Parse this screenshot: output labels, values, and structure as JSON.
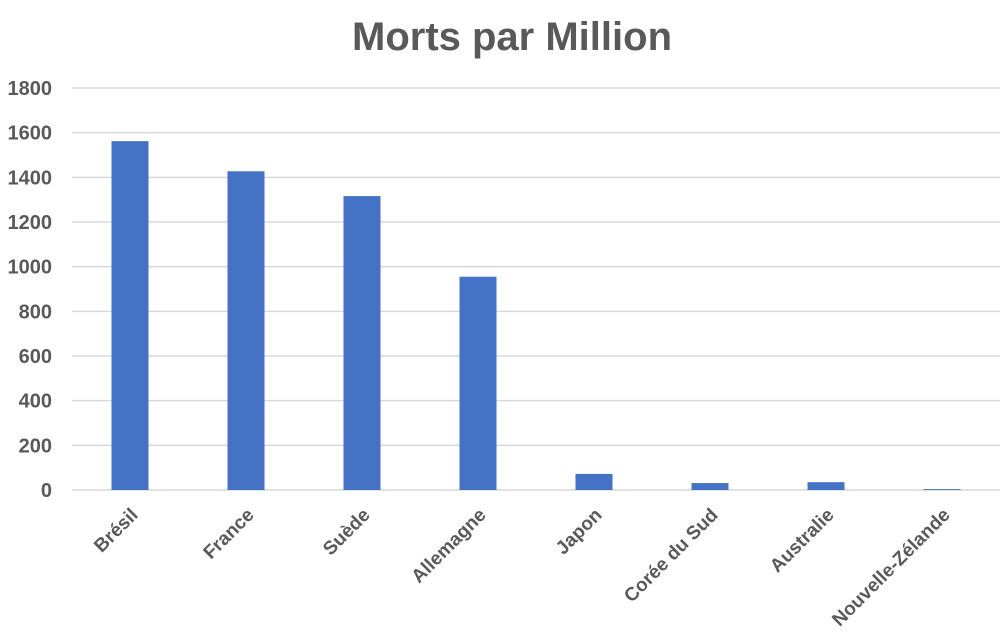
{
  "chart_data": {
    "type": "bar",
    "title": "Morts par Million",
    "xlabel": "",
    "ylabel": "",
    "categories": [
      "Brésil",
      "France",
      "Suède",
      "Allemagne",
      "Japon",
      "Corée du Sud",
      "Australie",
      "Nouvelle-Zélande"
    ],
    "values": [
      1562,
      1427,
      1316,
      955,
      72,
      31,
      35,
      4
    ],
    "ylim": [
      0,
      1800
    ],
    "yticks": [
      0,
      200,
      400,
      600,
      800,
      1000,
      1200,
      1400,
      1600,
      1800
    ],
    "grid": true,
    "legend": "none",
    "bar_color": "#4472c4",
    "text_color": "#595959",
    "grid_color": "#d9d9d9"
  }
}
